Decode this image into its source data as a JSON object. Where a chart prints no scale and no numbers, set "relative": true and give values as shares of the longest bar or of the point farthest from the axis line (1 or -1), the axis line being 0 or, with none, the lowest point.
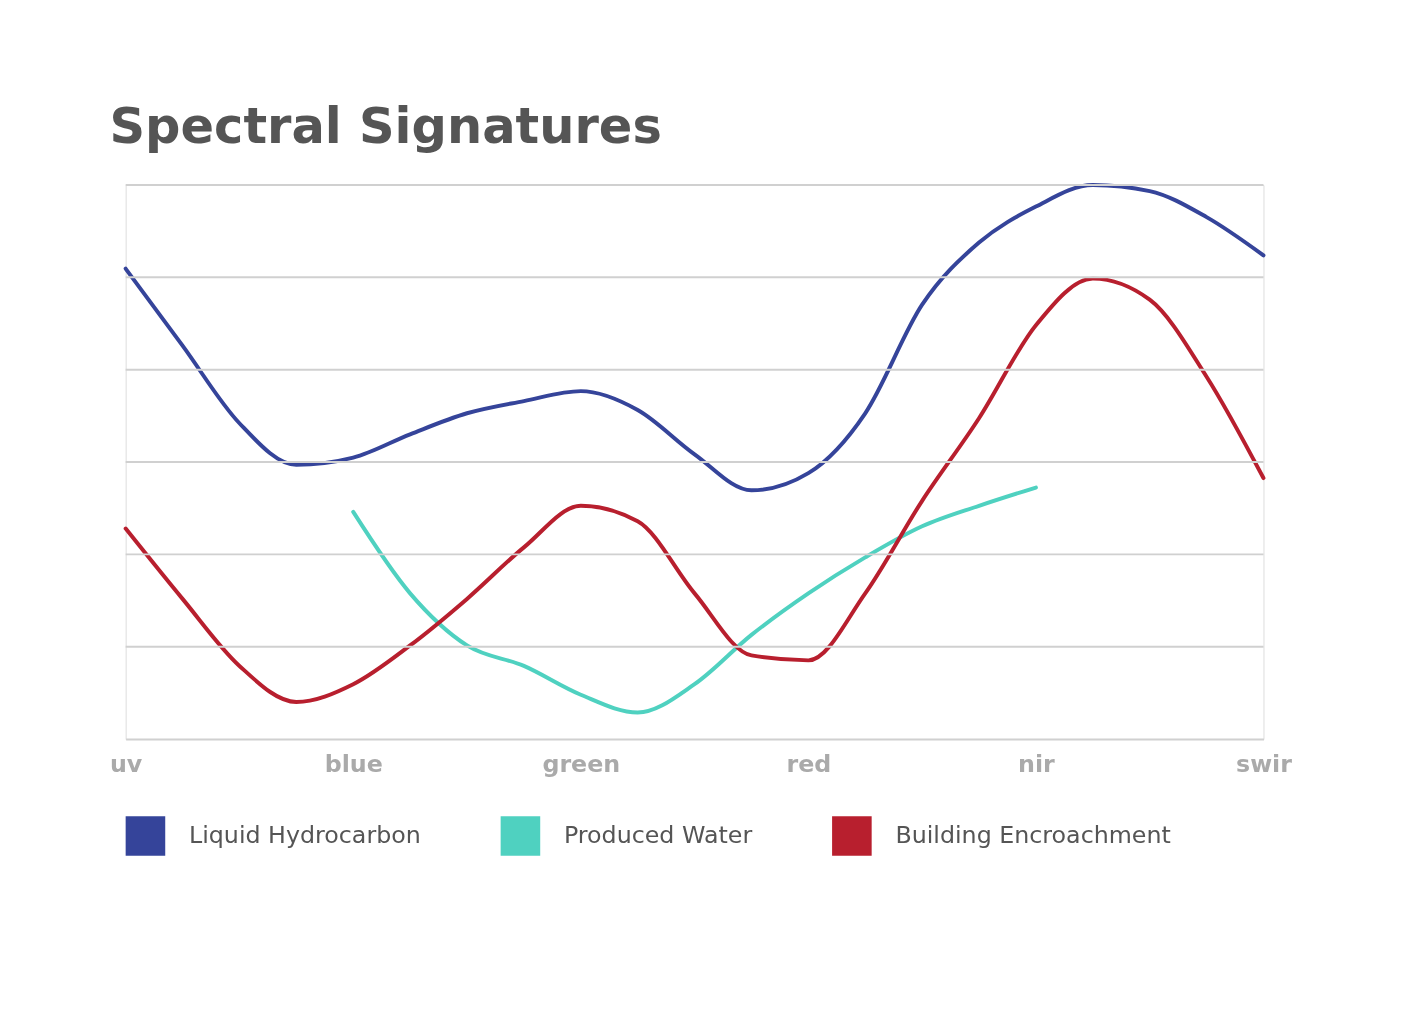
{
  "chart_data": {
    "type": "line",
    "title": "Spectral Signatures",
    "relative": true,
    "grid": "y",
    "legend": "bottom",
    "marker": "none",
    "line_style": "solid",
    "categories": [
      "uv",
      null,
      null,
      null,
      "blue",
      null,
      null,
      null,
      "green",
      null,
      null,
      null,
      "red",
      null,
      null,
      null,
      "nir",
      null,
      null,
      null,
      "swir"
    ],
    "series": [
      {
        "name": "Liquid Hydrocarbon",
        "color": "#35449a",
        "values": [
          0.849,
          0.71,
          0.57,
          0.495,
          0.508,
          0.55,
          0.588,
          0.61,
          0.628,
          0.594,
          0.514,
          0.449,
          0.48,
          0.588,
          0.784,
          0.896,
          0.961,
          1,
          0.989,
          0.942,
          0.873
        ]
      },
      {
        "name": "Produced Water",
        "color": "#4fd1c0",
        "values": [
          null,
          null,
          null,
          null,
          0.41,
          0.263,
          0.169,
          0.132,
          0.08,
          0.048,
          0.099,
          0.188,
          0.263,
          0.328,
          0.384,
          0.421,
          0.454,
          null,
          null,
          null,
          null
        ]
      },
      {
        "name": "Building Encroachment",
        "color": "#b81f2e",
        "values": [
          0.38,
          0.253,
          0.132,
          0.067,
          0.099,
          0.169,
          0.253,
          0.346,
          0.421,
          0.393,
          0.263,
          0.151,
          0.142,
          0.263,
          0.43,
          0.579,
          0.747,
          0.831,
          0.793,
          0.654,
          0.471
        ]
      }
    ]
  }
}
